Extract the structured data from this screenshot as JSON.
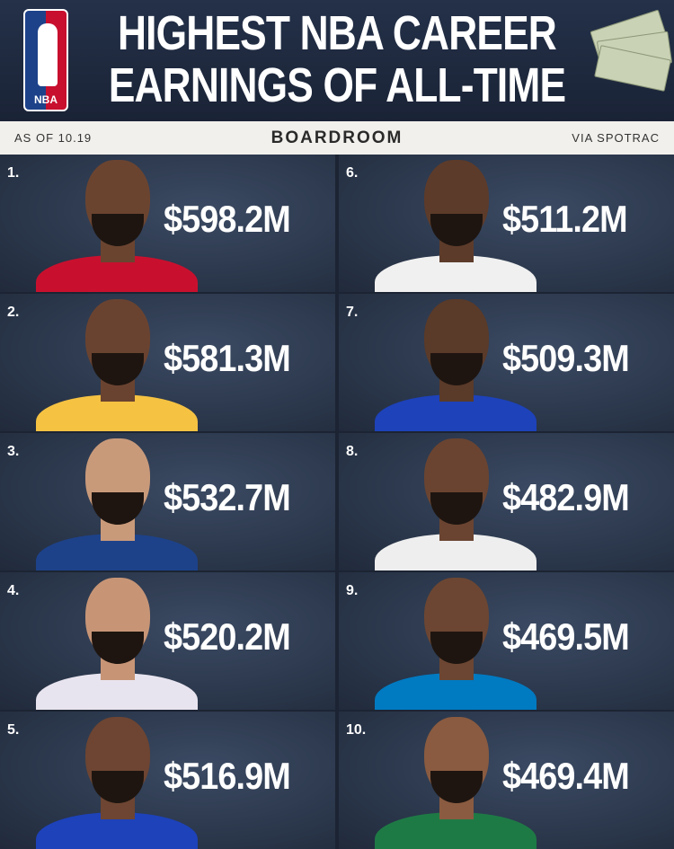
{
  "header": {
    "title_line1": "HIGHEST NBA CAREER",
    "title_line2": "EARNINGS OF ALL-TIME",
    "logo_text": "NBA"
  },
  "band": {
    "date": "AS OF 10.19",
    "brand": "BOARDROOM",
    "source": "VIA SPOTRAC"
  },
  "entries": [
    {
      "rank": "1.",
      "value": "$598.2M",
      "skin": "#6b4430",
      "jersey": "#c8102e"
    },
    {
      "rank": "2.",
      "value": "$581.3M",
      "skin": "#6a4330",
      "jersey": "#f5c242"
    },
    {
      "rank": "3.",
      "value": "$532.7M",
      "skin": "#c99a7a",
      "jersey": "#1d428a"
    },
    {
      "rank": "4.",
      "value": "$520.2M",
      "skin": "#c79576",
      "jersey": "#e8e4ef"
    },
    {
      "rank": "5.",
      "value": "$516.9M",
      "skin": "#6d4532",
      "jersey": "#1d42ba"
    },
    {
      "rank": "6.",
      "value": "$511.2M",
      "skin": "#5d3b2a",
      "jersey": "#f0f0f0"
    },
    {
      "rank": "7.",
      "value": "$509.3M",
      "skin": "#5a3a29",
      "jersey": "#1d42ba"
    },
    {
      "rank": "8.",
      "value": "$482.9M",
      "skin": "#6a4431",
      "jersey": "#eeeeee"
    },
    {
      "rank": "9.",
      "value": "$469.5M",
      "skin": "#6c4632",
      "jersey": "#007ac1"
    },
    {
      "rank": "10.",
      "value": "$469.4M",
      "skin": "#8a5b40",
      "jersey": "#1e7a45"
    }
  ]
}
